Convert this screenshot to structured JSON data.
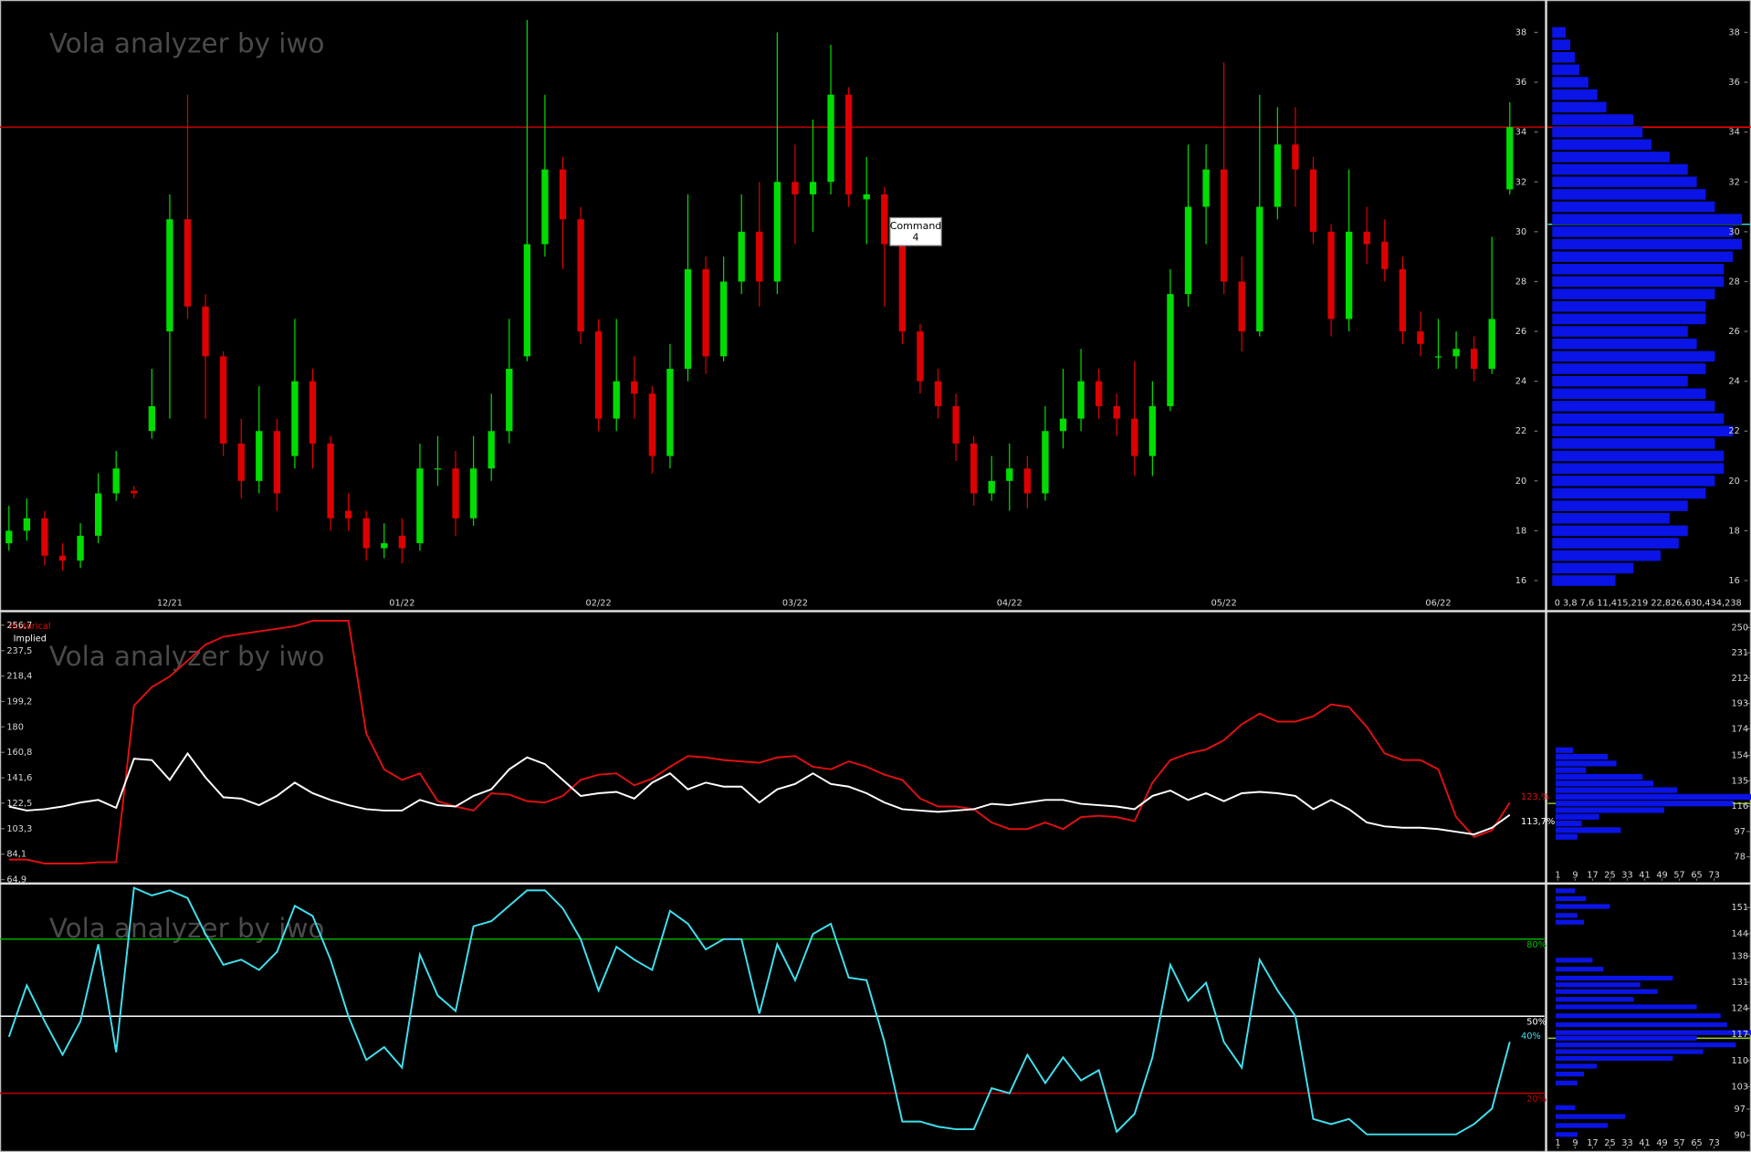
{
  "chart_data": [
    {
      "type": "candlestick",
      "title": "Vola analyzer by iwo",
      "categories": [
        null,
        null,
        null,
        null,
        null,
        null,
        null,
        null,
        null,
        "12/21",
        null,
        null,
        null,
        null,
        null,
        null,
        null,
        null,
        null,
        null,
        null,
        null,
        "01/22",
        null,
        null,
        null,
        null,
        null,
        null,
        null,
        null,
        null,
        null,
        "02/22",
        null,
        null,
        null,
        null,
        null,
        null,
        null,
        null,
        null,
        null,
        "03/22",
        null,
        null,
        null,
        null,
        null,
        null,
        null,
        null,
        null,
        null,
        null,
        "04/22",
        null,
        null,
        null,
        null,
        null,
        null,
        null,
        null,
        null,
        null,
        null,
        "05/22",
        null,
        null,
        null,
        null,
        null,
        null,
        null,
        null,
        null,
        null,
        null,
        "06/22",
        null,
        null,
        null,
        null
      ],
      "open": [
        17.5,
        18,
        18.5,
        17,
        16.8,
        17.8,
        19.5,
        19.6,
        22,
        26,
        30.5,
        27,
        25,
        21.5,
        20,
        22,
        21,
        24,
        21.5,
        18.8,
        18.5,
        17.3,
        17.8,
        17.5,
        20.5,
        20.5,
        18.5,
        20.5,
        22,
        25,
        29.5,
        32.5,
        30.5,
        26,
        22.5,
        24,
        23.5,
        21,
        24.5,
        28.5,
        25,
        28,
        30,
        28,
        32,
        31.5,
        32,
        35.5,
        31.3,
        31.5,
        29.5,
        26,
        24,
        23,
        21.5,
        19.5,
        20,
        20.5,
        19.5,
        22,
        22.5,
        24,
        23,
        22.5,
        21,
        23,
        27.5,
        31,
        32.5,
        28,
        26,
        31,
        33.5,
        32.5,
        30,
        26.5,
        30,
        29.6,
        28.5,
        26,
        25,
        25,
        25.3,
        24.5,
        31.7
      ],
      "high": [
        19,
        19.3,
        18.8,
        17.5,
        18.3,
        20.3,
        21.2,
        19.8,
        24.5,
        31.5,
        35.5,
        27.5,
        25.2,
        22.5,
        23.8,
        22.5,
        26.5,
        24.5,
        21.8,
        19.5,
        18.8,
        18.3,
        18.5,
        21.5,
        21.8,
        21.2,
        21.8,
        23.5,
        26.5,
        38.5,
        35.5,
        33,
        31,
        26.5,
        26.5,
        25,
        23.8,
        25.5,
        31.5,
        29,
        29,
        31.5,
        32,
        38,
        33.5,
        34.5,
        37.5,
        35.8,
        33,
        31.8,
        29.8,
        26.3,
        24.5,
        23.5,
        21.8,
        21,
        21.5,
        21,
        23,
        24.5,
        25.3,
        24.5,
        23.5,
        24.8,
        24,
        28.5,
        33.5,
        33.5,
        36.8,
        29,
        35.5,
        35,
        35,
        33,
        30.3,
        32.5,
        31,
        30.5,
        29,
        26.8,
        26.5,
        26,
        25.8,
        29.8,
        35.2
      ],
      "low": [
        17.2,
        17.6,
        16.6,
        16.4,
        16.5,
        17.5,
        19.2,
        19.3,
        21.7,
        22.5,
        26.5,
        22.5,
        21,
        19.3,
        19.5,
        18.8,
        20.5,
        20.5,
        18,
        18,
        16.8,
        16.9,
        16.7,
        17.2,
        19.8,
        17.8,
        18.2,
        20,
        21.5,
        24.8,
        29,
        28.5,
        25.5,
        22,
        22,
        22.5,
        20.3,
        20.5,
        24,
        24.3,
        24.8,
        27.5,
        27,
        27.5,
        29.5,
        30,
        31.5,
        31,
        29.5,
        27,
        25.5,
        23.5,
        22.5,
        20.8,
        19,
        19.2,
        18.8,
        18.9,
        19.2,
        21.3,
        22,
        22.5,
        21.8,
        20.2,
        20.2,
        22.8,
        27,
        29.5,
        27.5,
        25.2,
        25.8,
        30.5,
        31,
        29.5,
        25.8,
        26,
        28.7,
        28,
        25.5,
        25,
        24.5,
        24.5,
        24,
        24.3,
        31.5
      ],
      "close": [
        18,
        18.5,
        17,
        16.8,
        17.8,
        19.5,
        20.5,
        19.5,
        23,
        30.5,
        27,
        25,
        21.5,
        20,
        22,
        19.5,
        24,
        21.5,
        18.5,
        18.5,
        17.3,
        17.5,
        17.3,
        20.5,
        20.5,
        18.5,
        20.5,
        22,
        24.5,
        29.5,
        32.5,
        30.5,
        26,
        22.5,
        24,
        23.5,
        21,
        24.5,
        28.5,
        25,
        28,
        30,
        28,
        32,
        31.5,
        32,
        35.5,
        31.5,
        31.5,
        29.5,
        26,
        24,
        23,
        21.5,
        19.5,
        20,
        20.5,
        19.5,
        22,
        22.5,
        24,
        23,
        22.5,
        21,
        23,
        27.5,
        31,
        32.5,
        28,
        26,
        31,
        33.5,
        32.5,
        30,
        26.5,
        30,
        29.5,
        28.5,
        26,
        25.5,
        25,
        25.3,
        24.5,
        26.5,
        34.2
      ],
      "up_color": "#00dd00",
      "down_color": "#dd0000",
      "ylim": [
        14.84,
        39.3
      ],
      "yticks": [
        16,
        18,
        20,
        22,
        24,
        26,
        28,
        30,
        32,
        34,
        36,
        38
      ],
      "hlines": [
        {
          "value": 34.2,
          "color": "#c00000"
        }
      ],
      "annotation": [
        "Command",
        "4"
      ]
    },
    {
      "type": "hbar",
      "color": "#0a14e6",
      "levels": [
        16,
        16.5,
        17,
        17.5,
        18,
        18.5,
        19,
        19.5,
        20,
        20.5,
        21,
        21.5,
        22,
        22.5,
        23,
        23.5,
        24,
        24.5,
        25,
        25.5,
        26,
        26.5,
        27,
        27.5,
        28,
        28.5,
        29,
        29.5,
        30,
        30.5,
        31,
        31.5,
        32,
        32.5,
        33,
        33.5,
        34,
        34.5,
        35,
        35.5,
        36,
        36.5,
        37,
        37.5,
        38
      ],
      "values": [
        14,
        18,
        24,
        28,
        30,
        26,
        30,
        34,
        36,
        38,
        38,
        36,
        40,
        38,
        36,
        34,
        30,
        34,
        36,
        32,
        30,
        34,
        34,
        36,
        38,
        38,
        40,
        42,
        40,
        42,
        36,
        34,
        32,
        30,
        26,
        22,
        20,
        18,
        12,
        10,
        8,
        6,
        5,
        4,
        3
      ],
      "xlim": [
        0,
        44
      ],
      "x_axis_text": "0   3,8   7,6   11,415,219   22,826,630,434,238",
      "ylim": [
        14.84,
        39.3
      ],
      "yticks": [
        16,
        18,
        20,
        22,
        24,
        26,
        28,
        30,
        32,
        34,
        36,
        38
      ],
      "hlines": [
        {
          "value": 34.2,
          "color": "#ff0000"
        },
        {
          "value": 30.3,
          "color": "#40e0d0"
        }
      ]
    },
    {
      "type": "line",
      "title": "Vola analyzer by iwo",
      "legend": "top-left",
      "series": [
        {
          "name": "Historical",
          "color": "#e01010",
          "end_label": "123,%",
          "values": [
            80,
            80,
            77,
            77,
            77,
            78,
            78,
            196,
            210,
            218,
            230,
            242,
            248,
            250,
            252,
            254,
            256,
            260,
            260,
            260,
            175,
            148,
            140,
            145,
            124,
            120,
            117,
            130,
            129,
            124,
            123,
            128,
            140,
            144,
            145,
            136,
            141,
            150,
            158,
            157,
            155,
            154,
            153,
            157,
            158,
            150,
            148,
            154,
            150,
            144,
            140,
            126,
            120,
            120,
            118,
            108,
            103,
            103,
            108,
            103,
            112,
            113,
            112,
            109,
            138,
            155,
            160,
            163,
            170,
            182,
            190,
            184,
            184,
            188,
            197,
            195,
            180,
            160,
            155,
            155,
            148,
            112,
            97,
            102,
            123
          ]
        },
        {
          "name": "Implied",
          "color": "#ffffff",
          "end_label": "113,7%",
          "values": [
            120,
            117,
            118,
            120,
            123,
            125,
            119,
            156,
            155,
            140,
            160,
            142,
            127,
            126,
            121,
            128,
            138,
            130,
            125,
            121,
            118,
            117,
            117,
            125,
            121,
            120,
            128,
            133,
            148,
            157,
            152,
            140,
            128,
            130,
            131,
            126,
            138,
            145,
            133,
            138,
            135,
            135,
            123,
            133,
            137,
            145,
            137,
            135,
            130,
            123,
            118,
            117,
            116,
            117,
            118,
            122,
            121,
            123,
            125,
            125,
            122,
            121,
            120,
            118,
            128,
            132,
            125,
            130,
            124,
            130,
            131,
            130,
            128,
            118,
            125,
            118,
            108,
            105,
            104,
            104,
            103,
            101,
            99,
            104,
            113.7
          ]
        }
      ],
      "ylim": [
        63.2,
        266
      ],
      "yticks": [
        {
          "value": 64.9,
          "label": "64,9"
        },
        {
          "value": 84.1,
          "label": "84,1"
        },
        {
          "value": 103.3,
          "label": "103,3"
        },
        {
          "value": 122.5,
          "label": "122,5"
        },
        {
          "value": 141.6,
          "label": "141,6"
        },
        {
          "value": 160.8,
          "label": "160,8"
        },
        180,
        {
          "value": 199.2,
          "label": "199,2"
        },
        {
          "value": 218.4,
          "label": "218,4"
        },
        {
          "value": 237.5,
          "label": "237,5"
        },
        {
          "value": 256.7,
          "label": "256,7"
        }
      ]
    },
    {
      "type": "hbar",
      "color": "#0a14e6",
      "levels": [
        158,
        153,
        148,
        143,
        138,
        133,
        128,
        123,
        118,
        113,
        108,
        103,
        98,
        93
      ],
      "values": [
        8,
        24,
        28,
        14,
        40,
        45,
        56,
        90,
        82,
        50,
        20,
        12,
        30,
        10
      ],
      "xlim": [
        -1.6,
        90
      ],
      "xticks": [
        1,
        9,
        17,
        25,
        33,
        41,
        49,
        57,
        65,
        73
      ],
      "ylim": [
        59.2,
        261
      ],
      "yticks": [
        78,
        97,
        116,
        135,
        154,
        174,
        193,
        212,
        231,
        250
      ],
      "hlines": [
        {
          "value": 118,
          "color": "#9acd32"
        }
      ]
    },
    {
      "type": "line",
      "title": "Vola analyzer by iwo",
      "series": [
        {
          "color": "#40e0f0",
          "end_label": "40%",
          "values": [
            42,
            62,
            48,
            35,
            48,
            78,
            36,
            100,
            97,
            99,
            96,
            82,
            70,
            72,
            68,
            75,
            93,
            89,
            72,
            50,
            33,
            38,
            30,
            74,
            58,
            52,
            85,
            87,
            93,
            99,
            99,
            92,
            80,
            60,
            77,
            72,
            68,
            91,
            86,
            76,
            80,
            80,
            51,
            78,
            64,
            82,
            86,
            65,
            64,
            40,
            9,
            9,
            7,
            6,
            6,
            22,
            20,
            35,
            24,
            34,
            25,
            29,
            5,
            12,
            34,
            70,
            56,
            63,
            40,
            30,
            72,
            60,
            50,
            10,
            8,
            10,
            4,
            4,
            4,
            4,
            4,
            4,
            8,
            14,
            40
          ]
        }
      ],
      "ylim": [
        -2,
        101
      ],
      "hlines": [
        {
          "value": 80,
          "label": "80%",
          "color": "#00c000"
        },
        {
          "value": 50,
          "label": "50%",
          "color": "#ffffff"
        },
        {
          "value": 20,
          "label": "20%",
          "color": "#c00000"
        }
      ]
    },
    {
      "type": "hbar",
      "color": "#0a14e6",
      "levels": [
        155.5,
        153.4,
        151.3,
        148.9,
        147.1,
        136.9,
        134.5,
        132.1,
        130.3,
        128.5,
        126.4,
        124.4,
        122,
        119.6,
        117.5,
        116,
        114.2,
        112.4,
        110.6,
        108.5,
        106.4,
        104,
        97.4,
        95,
        92.6,
        90.2
      ],
      "values": [
        9,
        14,
        25,
        10,
        13,
        17,
        22,
        54,
        39,
        47,
        36,
        65,
        76,
        79,
        90,
        65,
        83,
        68,
        54,
        19,
        13,
        10,
        9,
        32,
        24,
        10
      ],
      "xlim": [
        -1.6,
        90
      ],
      "xticks": [
        1,
        9,
        17,
        25,
        33,
        41,
        49,
        57,
        65,
        73
      ],
      "ylim": [
        86.1,
        157
      ],
      "yticks": [
        90,
        97,
        103,
        110,
        117,
        124,
        131,
        138,
        144,
        151
      ],
      "hlines": [
        {
          "value": 116,
          "color": "#9acd32"
        }
      ]
    }
  ]
}
